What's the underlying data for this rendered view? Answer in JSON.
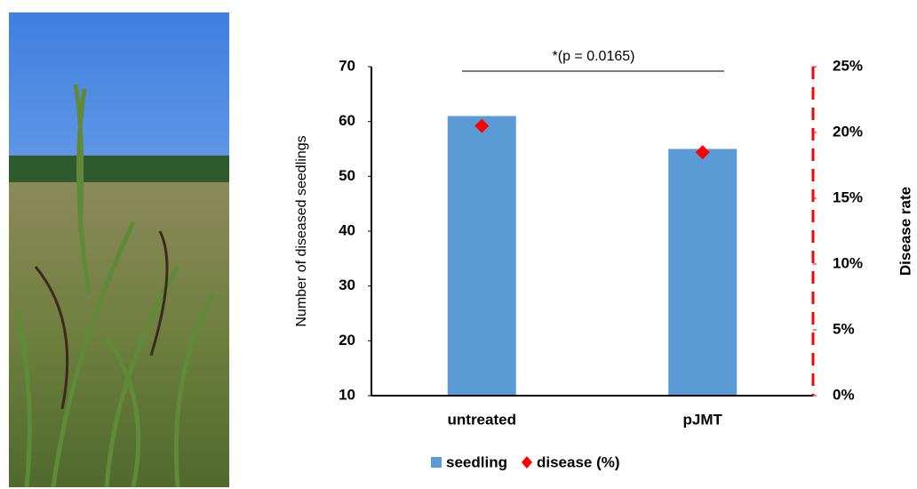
{
  "chart_data": {
    "type": "combo",
    "annotation": "*(p = 0.0165)",
    "ylabel": "Number of diseased seedlings",
    "y2label": "Disease rate",
    "categories": [
      "untreated",
      "pJMT"
    ],
    "series": [
      {
        "name": "seedling",
        "type": "bar",
        "color": "#5b9bd5",
        "values": [
          61,
          55
        ]
      },
      {
        "name": "disease (%)",
        "type": "scatter",
        "color": "#ff0000",
        "values": [
          20.5,
          18.5
        ],
        "axis": "y2"
      }
    ],
    "ylim": [
      10,
      70
    ],
    "yticks": [
      10,
      20,
      30,
      40,
      50,
      60,
      70
    ],
    "y2lim": [
      0,
      25
    ],
    "y2ticks": [
      {
        "value": 0,
        "label": "0%"
      },
      {
        "value": 5,
        "label": "5%"
      },
      {
        "value": 10,
        "label": "10%"
      },
      {
        "value": 15,
        "label": "15%"
      },
      {
        "value": 20,
        "label": "20%"
      },
      {
        "value": 25,
        "label": "25%"
      }
    ],
    "y2axis_color": "#ff0000"
  }
}
